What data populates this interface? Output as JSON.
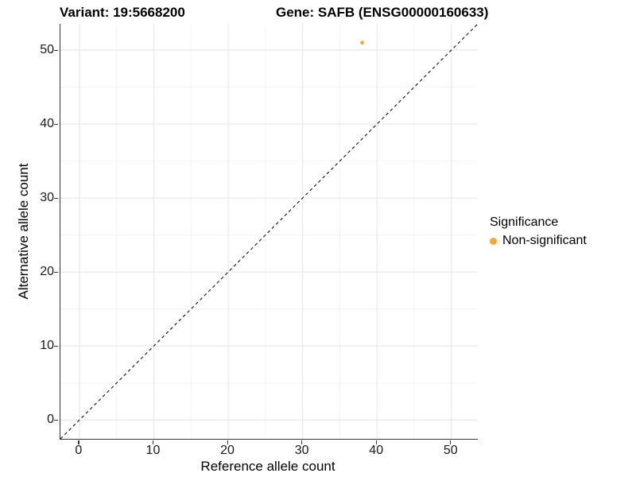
{
  "titles": {
    "variant": "Variant: 19:5668200",
    "gene": "Gene: SAFB (ENSG00000160633)"
  },
  "chart_data": {
    "type": "scatter",
    "title_left": "Variant: 19:5668200",
    "title_right": "Gene: SAFB (ENSG00000160633)",
    "xlabel": "Reference allele count",
    "ylabel": "Alternative allele count",
    "xlim": [
      -2.55,
      53.55
    ],
    "ylim": [
      -2.55,
      53.55
    ],
    "x_ticks": [
      0,
      10,
      20,
      30,
      40,
      50
    ],
    "y_ticks": [
      0,
      10,
      20,
      30,
      40,
      50
    ],
    "x_minor_ticks": [
      5,
      15,
      25,
      35,
      45
    ],
    "y_minor_ticks": [
      5,
      15,
      25,
      35,
      45
    ],
    "grid": true,
    "identity_line": {
      "style": "dashed",
      "from": [
        -2.55,
        -2.55
      ],
      "to": [
        53.55,
        53.55
      ],
      "color": "#111111"
    },
    "points": [
      {
        "x": 38,
        "y": 51,
        "series": "Non-significant"
      }
    ],
    "legend": {
      "title": "Significance",
      "position": "right",
      "entries": [
        {
          "label": "Non-significant",
          "color": "#FAA43A"
        }
      ]
    }
  },
  "colors": {
    "point_orange": "#FAA43A",
    "major_grid": "#E8E8E8",
    "minor_grid": "#F3F3F3",
    "axis_line": "#333333"
  }
}
